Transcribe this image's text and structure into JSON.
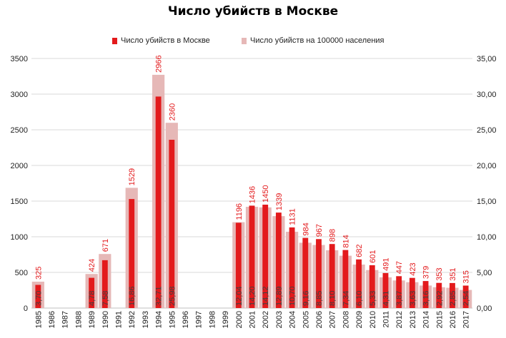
{
  "chart_data": {
    "type": "bar",
    "title": "Число убийств в Москве",
    "categories": [
      "1985",
      "1986",
      "1987",
      "1988",
      "1989",
      "1990",
      "1991",
      "1992",
      "1993",
      "1994",
      "1995",
      "1996",
      "1997",
      "1998",
      "1999",
      "2000",
      "2001",
      "2002",
      "2003",
      "2004",
      "2005",
      "2006",
      "2007",
      "2008",
      "2009",
      "2010",
      "2011",
      "2012",
      "2013",
      "2014",
      "2015",
      "2016",
      "2017"
    ],
    "series": [
      {
        "name": "Число убийств в Москве",
        "axis": "left",
        "color": "#e31a1c",
        "values": [
          325,
          null,
          null,
          null,
          424,
          671,
          null,
          1529,
          null,
          2966,
          2360,
          null,
          null,
          null,
          null,
          1196,
          1436,
          1450,
          1339,
          1131,
          984,
          967,
          898,
          814,
          682,
          601,
          491,
          447,
          423,
          379,
          353,
          351,
          315
        ],
        "labels": [
          "325",
          "",
          "",
          "",
          "424",
          "671",
          "",
          "1529",
          "",
          "2966",
          "2360",
          "",
          "",
          "",
          "",
          "1196",
          "1436",
          "1450",
          "1339",
          "1131",
          "984",
          "967",
          "898",
          "814",
          "682",
          "601",
          "491",
          "447",
          "423",
          "379",
          "353",
          "351",
          "315"
        ]
      },
      {
        "name": "Число убийств на 100000 населения",
        "axis": "right",
        "color": "#e6b8b7",
        "values": [
          3.7,
          null,
          null,
          null,
          4.78,
          7.58,
          null,
          16.86,
          null,
          32.71,
          25.98,
          null,
          null,
          null,
          null,
          12.04,
          14.2,
          14.12,
          12.89,
          10.7,
          9.16,
          8.85,
          8.1,
          7.34,
          6.1,
          5.33,
          4.31,
          3.87,
          3.63,
          3.16,
          2.92,
          2.85,
          2.54
        ],
        "labels": [
          "3,70",
          "",
          "",
          "",
          "4,78",
          "7,58",
          "",
          "16,86",
          "",
          "32,71",
          "25,98",
          "",
          "",
          "",
          "",
          "12,04",
          "14,20",
          "14,12",
          "12,89",
          "10,70",
          "9,16",
          "8,85",
          "8,10",
          "7,34",
          "6,10",
          "5,33",
          "4,31",
          "3,87",
          "3,63",
          "3,16",
          "2,92",
          "2,85",
          "2,54"
        ]
      }
    ],
    "ylim": [
      0,
      3500
    ],
    "y2lim": [
      0,
      35
    ],
    "y_ticks": [
      "0",
      "500",
      "1000",
      "1500",
      "2000",
      "2500",
      "3000",
      "3500"
    ],
    "y2_ticks": [
      "0,00",
      "5,00",
      "10,00",
      "15,00",
      "20,00",
      "25,00",
      "30,00",
      "35,00"
    ],
    "grid": true,
    "legend_position": "top"
  }
}
